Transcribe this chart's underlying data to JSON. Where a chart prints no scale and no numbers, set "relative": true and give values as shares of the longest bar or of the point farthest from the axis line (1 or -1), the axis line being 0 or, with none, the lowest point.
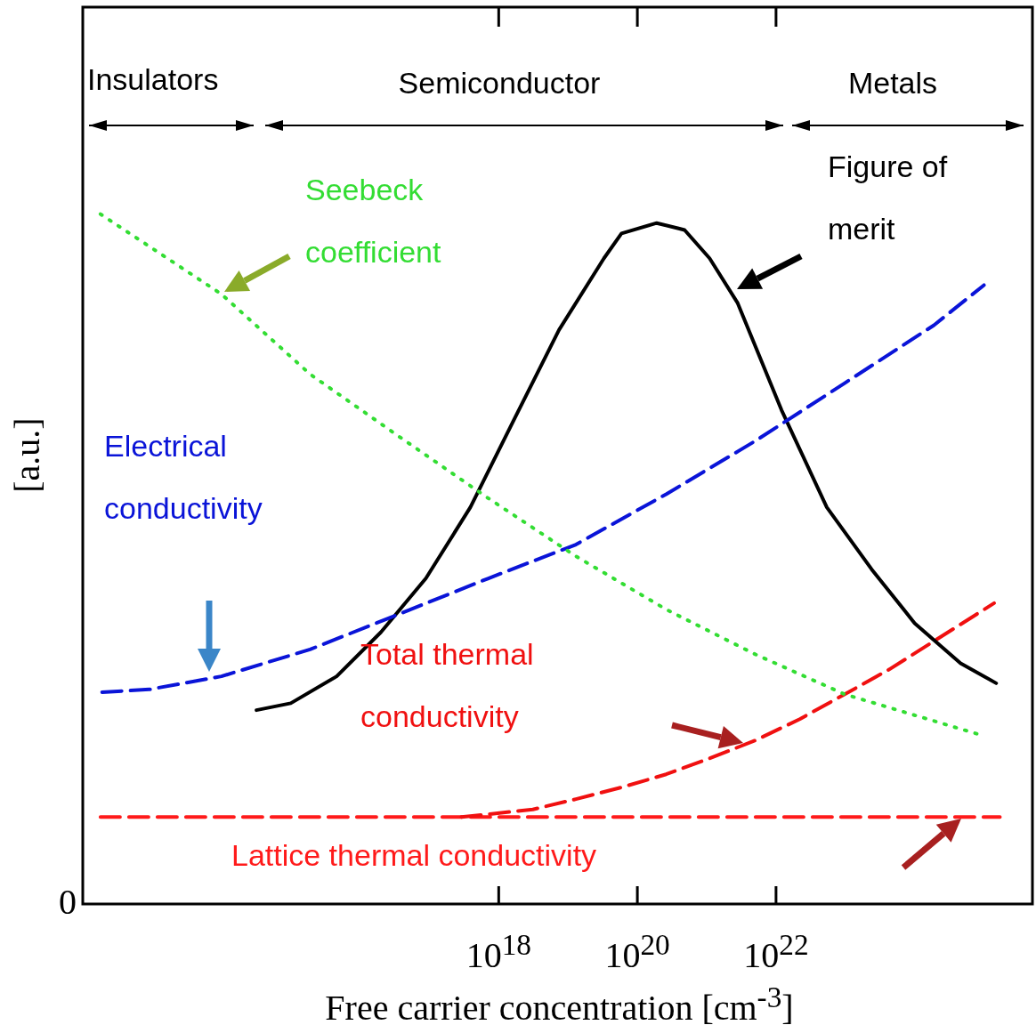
{
  "chart_data": {
    "type": "line",
    "xlabel": "Free carrier concentration [cm$^{-3}$]",
    "ylabel": "[a.u.]",
    "relative": true,
    "log": "x",
    "xlim": [
      1000000000000.0,
      5e+25
    ],
    "xticks": [
      {
        "value": 1e+18,
        "label": "10$^{18}$"
      },
      {
        "value": 1e+20,
        "label": "10$^{20}$"
      },
      {
        "value": 1e+22,
        "label": "10$^{22}$"
      }
    ],
    "annotations": [
      "0",
      "Insulators",
      "Semiconductor",
      "Metals"
    ],
    "series": [
      {
        "name": "Seebeck coefficient",
        "color": "#33dd33",
        "line_style": "dotted",
        "x": [
          1800000000000.0,
          100000000000000.0,
          1900000000000000.0,
          3.6e+16,
          7.1e+17,
          1.3e+19,
          2.6e+20,
          5e+21,
          9.8e+22,
          8.3e+24
        ],
        "values": [
          1.0,
          0.884,
          0.768,
          0.678,
          0.588,
          0.504,
          0.427,
          0.362,
          0.304,
          0.246
        ]
      },
      {
        "name": "Electrical conductivity",
        "color": "#0a14d8",
        "line_style": "dashed",
        "x": [
          1900000000000.0,
          9100000000000.0,
          100000000000000.0,
          1900000000000000.0,
          3.6e+16,
          7.1e+17,
          1.3e+19,
          2.6e+20,
          5e+21,
          9.8e+22,
          1.9e+24,
          1e+25
        ],
        "values": [
          0.307,
          0.311,
          0.33,
          0.369,
          0.42,
          0.472,
          0.521,
          0.594,
          0.671,
          0.755,
          0.839,
          0.897
        ]
      },
      {
        "name": "Figure of merit",
        "color": "#000000",
        "line_style": "solid",
        "x": [
          320000000000000.0,
          1000000000000000.0,
          4600000000000000.0,
          2e+16,
          8.9e+16,
          3.9e+17,
          1.7e+18,
          7.4e+18,
          3.3e+19,
          5.9e+19,
          1.9e+20,
          4.8e+20,
          1.1e+21,
          2.8e+21,
          1.2e+22,
          5.4e+22,
          2.4e+23,
          1e+24,
          4.6e+24,
          1.5e+25
        ],
        "values": [
          0.281,
          0.291,
          0.33,
          0.394,
          0.472,
          0.575,
          0.704,
          0.832,
          0.936,
          0.972,
          0.987,
          0.977,
          0.936,
          0.871,
          0.716,
          0.575,
          0.485,
          0.407,
          0.349,
          0.32
        ]
      },
      {
        "name": "Total thermal conductivity",
        "color": "#f01010",
        "line_style": "dashed",
        "x": [
          2.9e+17,
          3.1e+18,
          1.3e+19,
          5.9e+19,
          2.6e+20,
          1.1e+21,
          5e+21,
          2.2e+22,
          9.8e+22,
          4.3e+23,
          1.9e+24,
          1.4e+25
        ],
        "values": [
          0.126,
          0.137,
          0.152,
          0.169,
          0.188,
          0.211,
          0.237,
          0.268,
          0.304,
          0.34,
          0.381,
          0.436
        ]
      },
      {
        "name": "Lattice thermal conductivity",
        "color": "#ff1a1a",
        "line_style": "dashed",
        "x": [
          1800000000000.0,
          1.7e+25
        ],
        "values": [
          0.126,
          0.126
        ]
      }
    ]
  }
}
